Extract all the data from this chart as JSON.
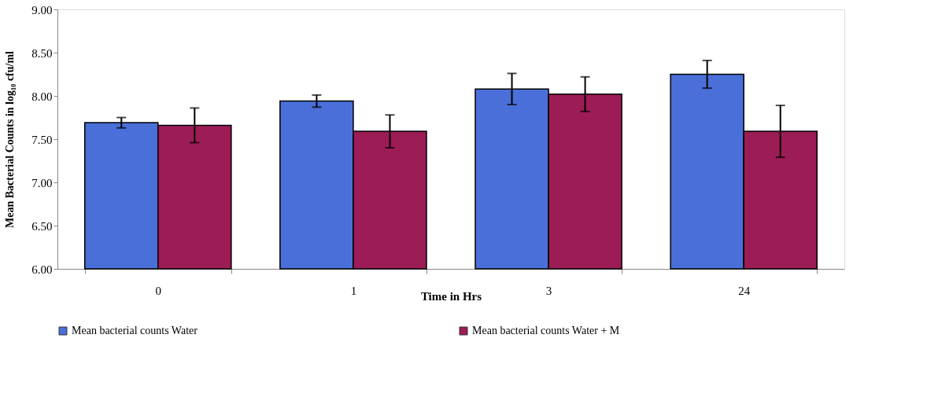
{
  "chart_data": {
    "type": "bar",
    "xlabel": "Time in Hrs",
    "ylabel": "Mean Bacterial Counts in log₁₀ cfu/ml",
    "categories": [
      "0",
      "1",
      "3",
      "24"
    ],
    "series": [
      {
        "name": "Mean bacterial counts Water",
        "color": "#4a6fd8",
        "values": [
          7.69,
          7.94,
          8.08,
          8.25
        ],
        "errors": [
          0.06,
          0.07,
          0.18,
          0.16
        ]
      },
      {
        "name": "Mean bacterial counts Water + M",
        "color": "#9c1c56",
        "values": [
          7.66,
          7.59,
          8.02,
          7.59
        ],
        "errors": [
          0.2,
          0.19,
          0.2,
          0.3
        ]
      }
    ],
    "ylim": [
      6,
      9
    ],
    "yticks": [
      {
        "value": 6,
        "label": "6.00"
      },
      {
        "value": 6.5,
        "label": "6.50"
      },
      {
        "value": 7,
        "label": "7.00"
      },
      {
        "value": 7.5,
        "label": "7.50"
      },
      {
        "value": 8,
        "label": "8.00"
      },
      {
        "value": 8.5,
        "label": "8.50"
      },
      {
        "value": 9,
        "label": "9.00"
      }
    ],
    "grid": false,
    "legend": "bottom"
  }
}
